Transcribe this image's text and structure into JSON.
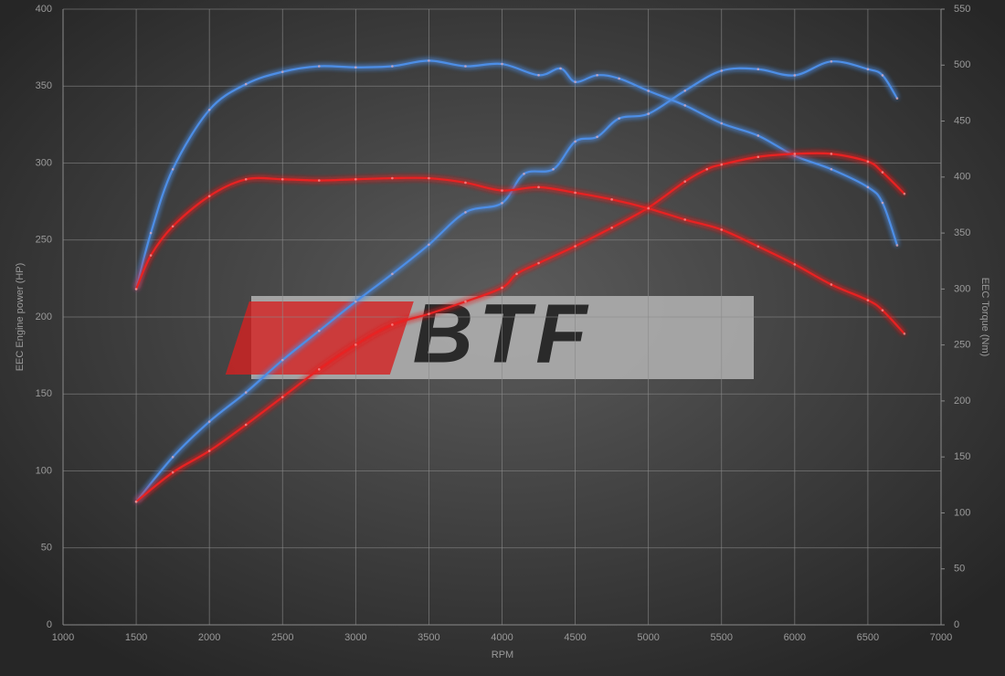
{
  "chart_data": {
    "type": "line",
    "xlabel": "RPM",
    "ylabel": "EEC Engine power (HP)",
    "y2label": "EEC Torque (Nm)",
    "watermark": "BTF",
    "xlim": [
      1000,
      7000
    ],
    "xticks": [
      1000,
      1500,
      2000,
      2500,
      3000,
      3500,
      4000,
      4500,
      5000,
      5500,
      6000,
      6500,
      7000
    ],
    "ylim": [
      0,
      400
    ],
    "yticks": [
      0,
      50,
      100,
      150,
      200,
      250,
      300,
      350,
      400
    ],
    "y2lim": [
      0,
      550
    ],
    "y2ticks": [
      0,
      50,
      100,
      150,
      200,
      250,
      300,
      350,
      400,
      450,
      500,
      550
    ],
    "grid": true,
    "series": [
      {
        "color": "#4d8ee6",
        "axis": "y",
        "x": [
          1500,
          1750,
          2000,
          2250,
          2500,
          2750,
          3000,
          3250,
          3500,
          3750,
          4000,
          4150,
          4350,
          4500,
          4650,
          4800,
          5000,
          5250,
          5500,
          5750,
          6000,
          6250,
          6500,
          6600,
          6700
        ],
        "values": [
          80,
          109,
          132,
          151,
          172,
          191,
          210,
          228,
          247,
          268,
          274,
          293,
          296,
          314,
          317,
          329,
          332,
          347,
          360,
          361,
          357,
          366,
          361,
          357,
          342
        ]
      },
      {
        "color": "#4d8ee6",
        "axis": "y2",
        "x": [
          1500,
          1600,
          1750,
          2000,
          2250,
          2500,
          2750,
          3000,
          3250,
          3500,
          3750,
          4000,
          4250,
          4400,
          4500,
          4650,
          4800,
          5000,
          5250,
          5500,
          5750,
          6000,
          6250,
          6500,
          6600,
          6700
        ],
        "values": [
          300,
          350,
          407,
          460,
          483,
          494,
          499,
          498,
          499,
          504,
          499,
          501,
          491,
          497,
          485,
          491,
          488,
          477,
          464,
          448,
          437,
          419,
          407,
          391,
          377,
          339
        ]
      },
      {
        "color": "#e82424",
        "axis": "y",
        "x": [
          1500,
          1750,
          2000,
          2250,
          2500,
          2750,
          3000,
          3250,
          3500,
          3750,
          4000,
          4100,
          4250,
          4500,
          4750,
          5000,
          5250,
          5400,
          5500,
          5750,
          6000,
          6250,
          6500,
          6600,
          6750
        ],
        "values": [
          80,
          99,
          113,
          130,
          148,
          166,
          182,
          195,
          202,
          210,
          219,
          228,
          235,
          246,
          258,
          271,
          288,
          296,
          299,
          304,
          306,
          306,
          301,
          294,
          280
        ]
      },
      {
        "color": "#e82424",
        "axis": "y2",
        "x": [
          1500,
          1600,
          1750,
          2000,
          2250,
          2500,
          2750,
          3000,
          3250,
          3500,
          3750,
          4000,
          4250,
          4500,
          4750,
          5000,
          5250,
          5500,
          5750,
          6000,
          6250,
          6500,
          6600,
          6750
        ],
        "values": [
          300,
          330,
          356,
          383,
          398,
          398,
          397,
          398,
          399,
          399,
          395,
          388,
          391,
          386,
          380,
          372,
          362,
          353,
          338,
          322,
          304,
          290,
          281,
          260
        ]
      }
    ]
  }
}
